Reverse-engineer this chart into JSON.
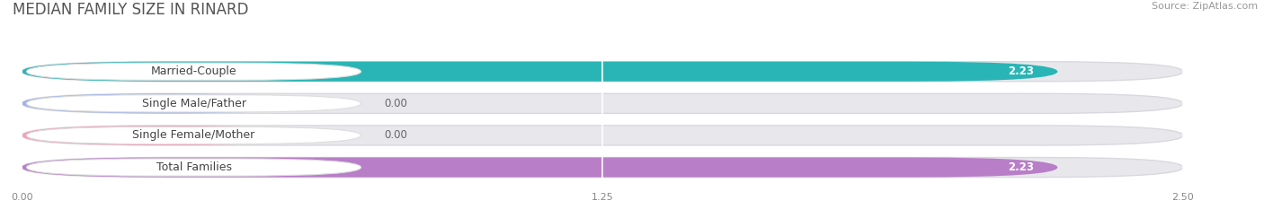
{
  "title": "MEDIAN FAMILY SIZE IN RINARD",
  "source": "Source: ZipAtlas.com",
  "categories": [
    "Married-Couple",
    "Single Male/Father",
    "Single Female/Mother",
    "Total Families"
  ],
  "values": [
    2.23,
    0.0,
    0.0,
    2.23
  ],
  "bar_colors": [
    "#29b5b5",
    "#a0b4e8",
    "#f4a0b5",
    "#b87ec8"
  ],
  "bar_track_color": "#e8e8ec",
  "background_color": "#ffffff",
  "xlim_max": 2.5,
  "xticks": [
    0.0,
    1.25,
    2.5
  ],
  "xtick_labels": [
    "0.00",
    "1.25",
    "2.50"
  ],
  "title_fontsize": 12,
  "source_fontsize": 8,
  "label_fontsize": 9,
  "value_fontsize": 8.5
}
